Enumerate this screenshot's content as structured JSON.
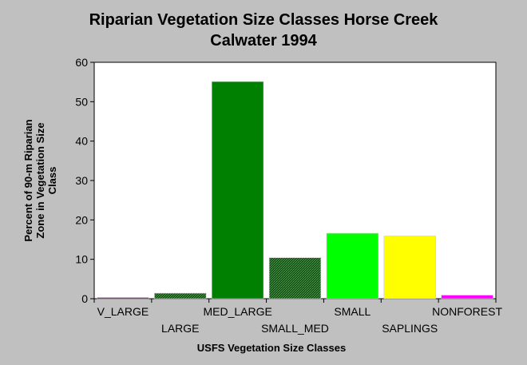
{
  "chart_data": {
    "type": "bar",
    "title": [
      "Riparian Vegetation Size Classes Horse Creek",
      "Calwater 1994"
    ],
    "xlabel": "USFS Vegetation Size Classes",
    "ylabel": [
      "Percent of 90-m Riparian",
      "Zone in Vegetation Size",
      "Class"
    ],
    "categories": [
      "V_LARGE",
      "LARGE",
      "MED_LARGE",
      "SMALL_MED",
      "SMALL",
      "SAPLINGS",
      "NONFOREST"
    ],
    "values": [
      0.2,
      1.4,
      55.1,
      10.4,
      16.6,
      15.9,
      0.9
    ],
    "colors": [
      "#800080",
      "#1a5c1a",
      "#008000",
      "#2e7d2e",
      "#00ff00",
      "#ffff00",
      "#ff00ff"
    ],
    "hatched": [
      false,
      true,
      false,
      true,
      false,
      false,
      false
    ],
    "ylim": [
      0,
      60
    ],
    "yticks": [
      0,
      10,
      20,
      30,
      40,
      50,
      60
    ],
    "grid": false,
    "legend": "none"
  }
}
